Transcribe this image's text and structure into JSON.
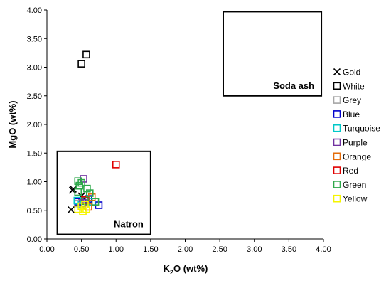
{
  "chart_data": {
    "type": "scatter",
    "title": "",
    "xlabel": {
      "main": "K",
      "sub": "2",
      "rest": "O (wt%)"
    },
    "ylabel": "MgO (wt%)",
    "xlim": [
      0,
      4
    ],
    "ylim": [
      0,
      4
    ],
    "xticks": [
      "0.00",
      "0.50",
      "1.00",
      "1.50",
      "2.00",
      "2.50",
      "3.00",
      "3.50",
      "4.00"
    ],
    "yticks": [
      "0.00",
      "0.50",
      "1.00",
      "1.50",
      "2.00",
      "2.50",
      "3.00",
      "3.50",
      "4.00"
    ],
    "grid": false,
    "legend_position": "right",
    "regions": [
      {
        "label": "Natron",
        "x": [
          0.15,
          1.5
        ],
        "y": [
          0.08,
          1.53
        ]
      },
      {
        "label": "Soda ash",
        "x": [
          2.55,
          3.97
        ],
        "y": [
          2.5,
          3.97
        ]
      }
    ],
    "series": [
      {
        "name": "Gold",
        "marker": "x",
        "color": "#000000",
        "points": [
          [
            0.37,
            0.85
          ],
          [
            0.38,
            0.87
          ],
          [
            0.5,
            0.75
          ],
          [
            0.52,
            0.55
          ],
          [
            0.35,
            0.51
          ]
        ]
      },
      {
        "name": "White",
        "marker": "square",
        "color": "#000000",
        "points": [
          [
            0.5,
            3.06
          ],
          [
            0.57,
            3.22
          ]
        ]
      },
      {
        "name": "Grey",
        "marker": "square",
        "color": "#a6a6a6",
        "points": [
          [
            0.45,
            0.62
          ],
          [
            0.55,
            0.6
          ]
        ]
      },
      {
        "name": "Blue",
        "marker": "square",
        "color": "#0000cc",
        "points": [
          [
            0.75,
            0.59
          ],
          [
            0.45,
            0.65
          ],
          [
            0.6,
            0.7
          ]
        ]
      },
      {
        "name": "Turquoise",
        "marker": "square",
        "color": "#00c8c8",
        "points": [
          [
            0.44,
            0.67
          ],
          [
            0.65,
            0.65
          ],
          [
            0.5,
            0.6
          ]
        ]
      },
      {
        "name": "Purple",
        "marker": "square",
        "color": "#7030a0",
        "points": [
          [
            0.53,
            1.05
          ],
          [
            0.57,
            0.67
          ],
          [
            0.52,
            0.63
          ]
        ]
      },
      {
        "name": "Orange",
        "marker": "square",
        "color": "#e46c0a",
        "points": [
          [
            0.6,
            0.56
          ],
          [
            0.65,
            0.73
          ]
        ]
      },
      {
        "name": "Red",
        "marker": "square",
        "color": "#e00000",
        "points": [
          [
            1.0,
            1.3
          ],
          [
            0.55,
            0.68
          ]
        ]
      },
      {
        "name": "Green",
        "marker": "square",
        "color": "#2ea84a",
        "points": [
          [
            0.45,
            1.01
          ],
          [
            0.47,
            0.93
          ],
          [
            0.5,
            0.98
          ],
          [
            0.58,
            0.88
          ],
          [
            0.62,
            0.8
          ],
          [
            0.7,
            0.65
          ],
          [
            0.45,
            0.82
          ],
          [
            0.55,
            0.66
          ]
        ]
      },
      {
        "name": "Yellow",
        "marker": "square",
        "color": "#f5f500",
        "points": [
          [
            0.45,
            0.52
          ],
          [
            0.52,
            0.48
          ],
          [
            0.57,
            0.52
          ],
          [
            0.5,
            0.57
          ],
          [
            0.55,
            0.6
          ]
        ]
      }
    ]
  }
}
